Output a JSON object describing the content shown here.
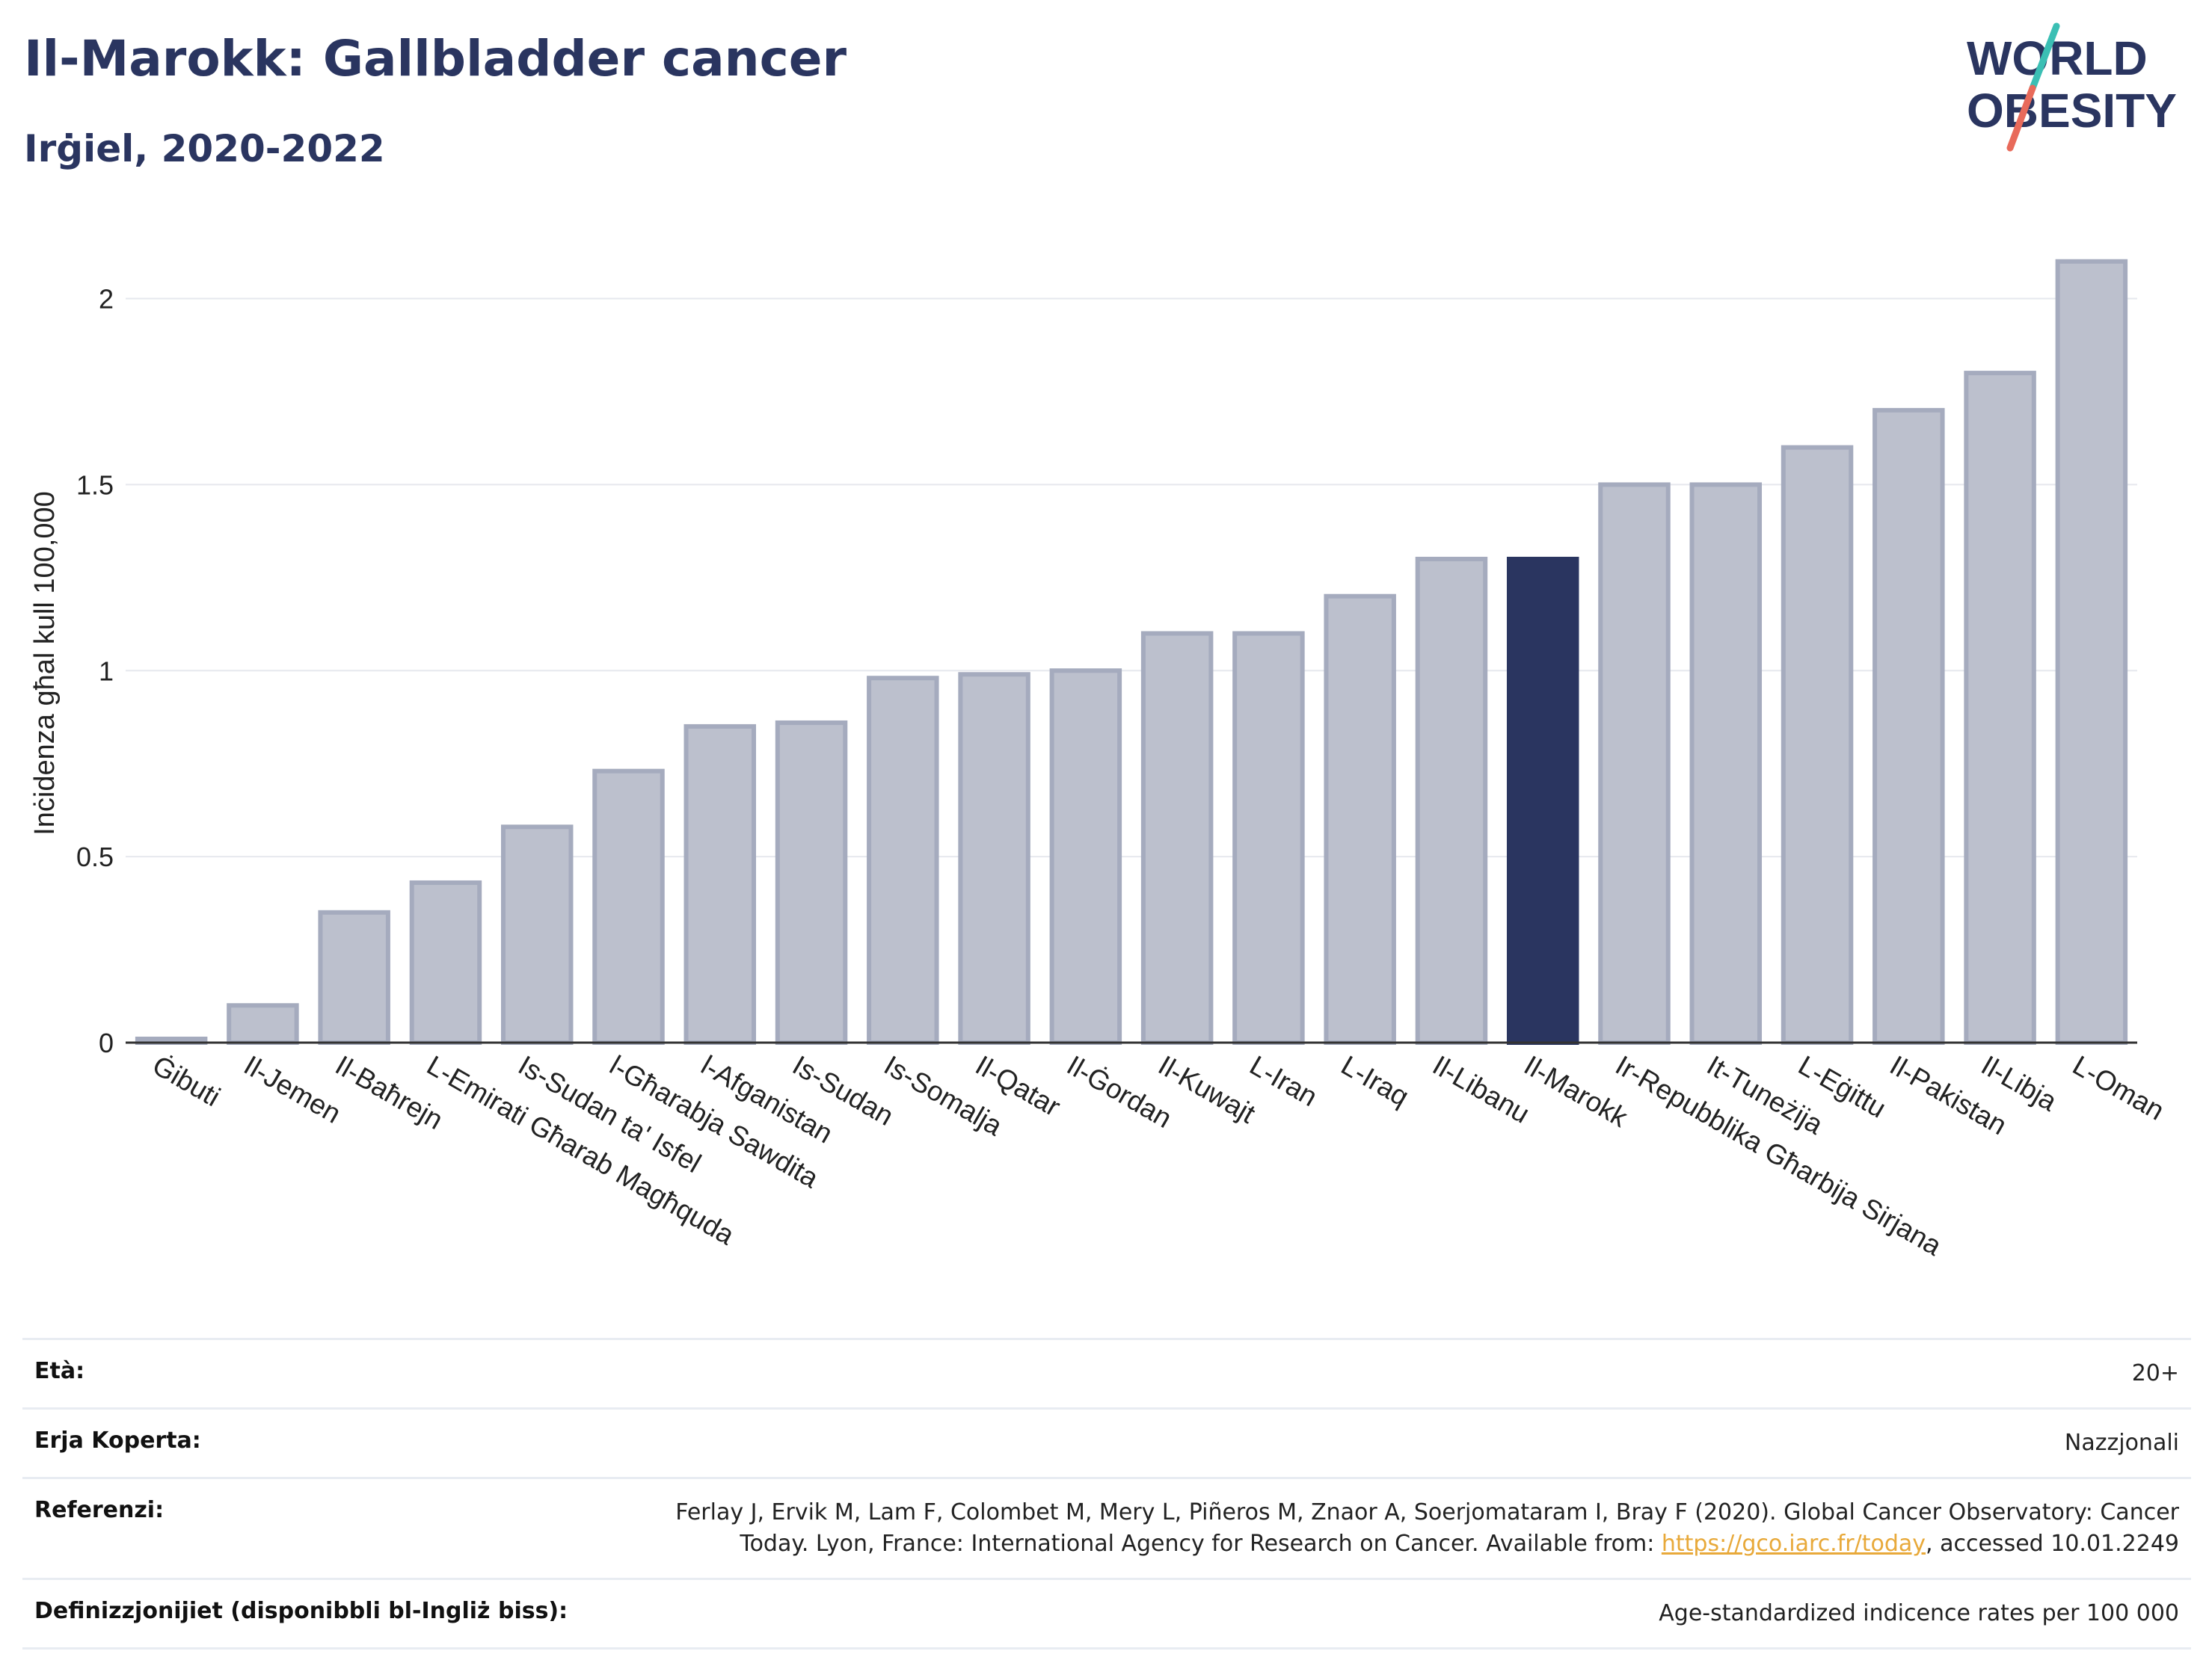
{
  "header": {
    "title": "Il-Marokk: Gallbladder cancer",
    "subtitle": "Irġiel, 2020-2022"
  },
  "logo": {
    "line1": "WORLD",
    "line2": "OBESITY",
    "colors": {
      "text": "#2a3560",
      "slash_top": "#3bbfb4",
      "slash_bottom": "#e86a5a"
    }
  },
  "chart_data": {
    "type": "bar",
    "ylabel": "Inċidenza għal kull 100,000",
    "ylim": [
      0,
      2.2
    ],
    "yticks": [
      0,
      0.5,
      1,
      1.5,
      2
    ],
    "ytick_labels": [
      "0",
      "0.5",
      "1",
      "1.5",
      "2"
    ],
    "grid": true,
    "highlight": "Il-Marokk",
    "colors": {
      "bar": "#bcc0cd",
      "bar_edge": "#a5abbe",
      "highlight": "#2a3560",
      "grid": "#e6e8ee"
    },
    "categories": [
      "Ġibuti",
      "Il-Jemen",
      "Il-Baħrejn",
      "L-Emirati Għarab Magħquda",
      "Is-Sudan ta' Isfel",
      "l-Għarabja Sawdita",
      "l-Afganistan",
      "Is-Sudan",
      "Is-Somalja",
      "Il-Qatar",
      "Il-Ġordan",
      "Il-Kuwajt",
      "L-Iran",
      "L-Iraq",
      "Il-Libanu",
      "Il-Marokk",
      "Ir-Repubblika Għarbija Sirjana",
      "It-Tuneżija",
      "L-Eġittu",
      "Il-Pakistan",
      "Il-Libja",
      "L-Oman"
    ],
    "values": [
      0.01,
      0.1,
      0.35,
      0.43,
      0.58,
      0.73,
      0.85,
      0.86,
      0.98,
      0.99,
      1.0,
      1.1,
      1.1,
      1.2,
      1.3,
      1.3,
      1.5,
      1.5,
      1.6,
      1.7,
      1.8,
      2.1
    ]
  },
  "info": {
    "age_label": "Età:",
    "age_value": "20+",
    "area_label": "Erja Koperta:",
    "area_value": "Nazzjonali",
    "ref_label": "Referenzi:",
    "ref_line1": "Ferlay J, Ervik M, Lam F, Colombet M, Mery L, Piñeros M, Znaor A, Soerjomataram I, Bray F (2020). Global Cancer Observatory: Cancer",
    "ref_line2_before": "Today. Lyon, France: International Agency for Research on Cancer. Available from: ",
    "ref_link": "https://gco.iarc.fr/today",
    "ref_line2_after": ", accessed 10.01.2249",
    "def_label": "Definizzjonijiet (disponibbli bl-Ingliż biss):",
    "def_value": "Age-standardized indicence rates per 100 000"
  }
}
